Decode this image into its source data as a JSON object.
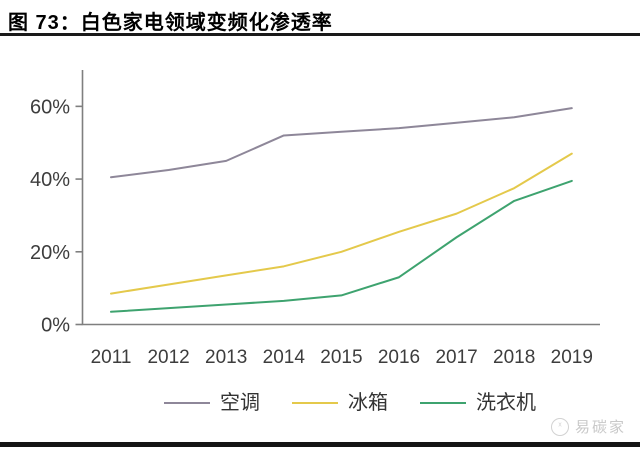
{
  "header": {
    "title": "图 73：白色家电领域变频化渗透率"
  },
  "chart_data": {
    "type": "line",
    "title": "白色家电领域变频化渗透率",
    "x": [
      2011,
      2012,
      2013,
      2014,
      2015,
      2016,
      2017,
      2018,
      2019
    ],
    "series": [
      {
        "name": "空调",
        "color": "#8e8799",
        "values": [
          40.5,
          42.5,
          45,
          52,
          53,
          54,
          55.5,
          57,
          59.5
        ]
      },
      {
        "name": "冰箱",
        "color": "#e4c94b",
        "values": [
          8.5,
          11,
          13.5,
          16,
          20,
          25.5,
          30.5,
          37.5,
          47
        ]
      },
      {
        "name": "洗衣机",
        "color": "#3ea36f",
        "values": [
          3.5,
          4.5,
          5.5,
          6.5,
          8,
          13,
          24,
          34,
          39.5
        ]
      }
    ],
    "xlabel": "",
    "ylabel": "",
    "ylim": [
      0,
      70
    ],
    "yticks": [
      0,
      20,
      40,
      60
    ],
    "ytick_suffix": "%",
    "grid": false,
    "legend_position": "bottom"
  },
  "colors": {
    "axis": "#7f7f7f",
    "tick_text": "#3d3d3d",
    "legend_text": "#333333",
    "title_rule": "#1a1a1a",
    "bottom_bar": "#141414",
    "watermark": "#c9c9c9"
  },
  "watermark": {
    "text": "易碳家",
    "icon": "bird-logo"
  }
}
